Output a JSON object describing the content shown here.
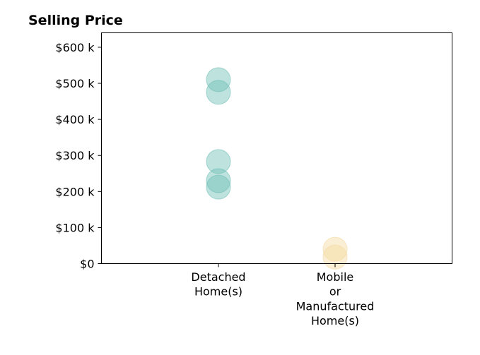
{
  "chart_data": {
    "type": "scatter",
    "title": "Selling Price",
    "xlabel": "",
    "ylabel": "",
    "categories": [
      [
        "Detached",
        "Home(s)"
      ],
      [
        "Mobile",
        "or",
        "Manufactured",
        "Home(s)"
      ]
    ],
    "ylim": [
      0,
      640000
    ],
    "yticks": [
      {
        "value": 0,
        "label": "$0"
      },
      {
        "value": 100000,
        "label": "$100 k"
      },
      {
        "value": 200000,
        "label": "$200 k"
      },
      {
        "value": 300000,
        "label": "$300 k"
      },
      {
        "value": 400000,
        "label": "$400 k"
      },
      {
        "value": 500000,
        "label": "$500 k"
      },
      {
        "value": 600000,
        "label": "$600 k"
      }
    ],
    "grid": false,
    "series": [
      {
        "category_index": 0,
        "color": "#6fbfb6",
        "values": [
          510000,
          475000,
          283000,
          230000,
          212000
        ]
      },
      {
        "category_index": 1,
        "color": "#f5d9a0",
        "values": [
          40000,
          18000
        ]
      }
    ]
  }
}
